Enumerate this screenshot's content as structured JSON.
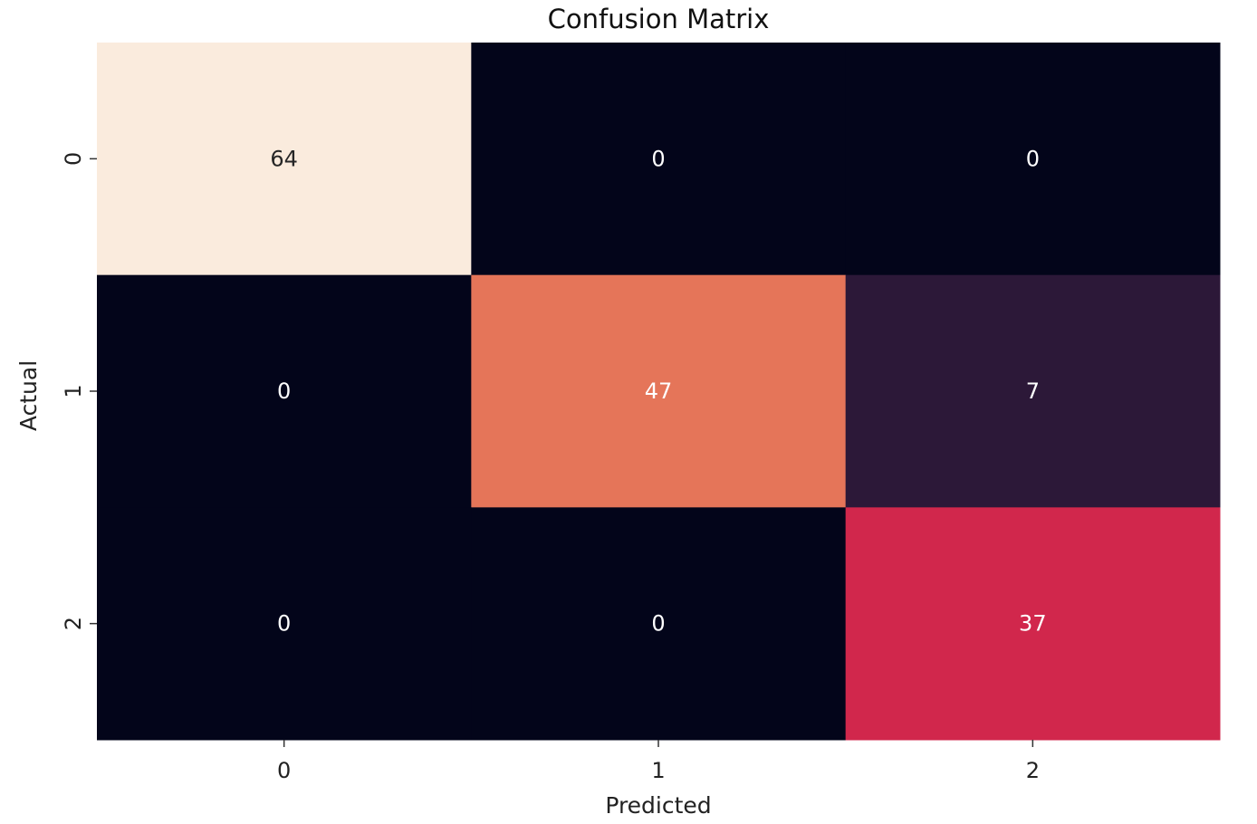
{
  "chart_data": {
    "type": "heatmap",
    "title": "Confusion Matrix",
    "xlabel": "Predicted",
    "ylabel": "Actual",
    "x_categories": [
      "0",
      "1",
      "2"
    ],
    "y_categories": [
      "0",
      "1",
      "2"
    ],
    "values": [
      [
        64,
        0,
        0
      ],
      [
        0,
        47,
        7
      ],
      [
        0,
        0,
        37
      ]
    ],
    "colormap": "rocket",
    "colorbar": false,
    "annotations": true
  }
}
